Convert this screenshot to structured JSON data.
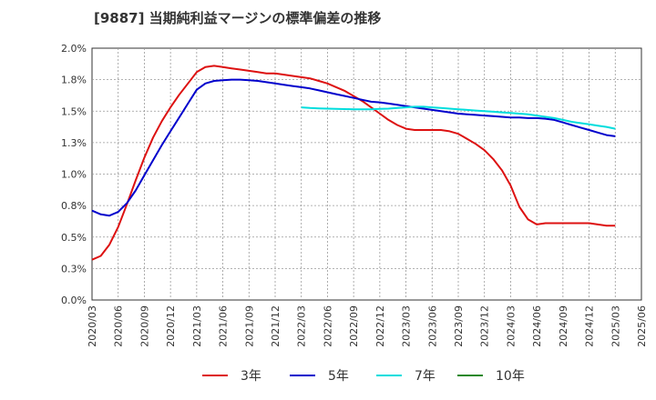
{
  "chart_data": {
    "type": "line",
    "title": "[9887]  当期純利益マージンの標準偏差の推移",
    "xlabel": "",
    "ylabel": "",
    "ylim": [
      0.0,
      2.0
    ],
    "grid": true,
    "legend_placement": "bottom",
    "y_ticks": [
      "0.0%",
      "0.3%",
      "0.5%",
      "0.8%",
      "1.0%",
      "1.3%",
      "1.5%",
      "1.8%",
      "2.0%"
    ],
    "x_ticks": [
      "2020/03",
      "2020/06",
      "2020/09",
      "2020/12",
      "2021/03",
      "2021/06",
      "2021/09",
      "2021/12",
      "2022/03",
      "2022/06",
      "2022/09",
      "2022/12",
      "2023/03",
      "2023/06",
      "2023/09",
      "2023/12",
      "2024/03",
      "2024/06",
      "2024/09",
      "2024/12",
      "2025/03",
      "2025/06"
    ],
    "series": [
      {
        "name": "3年",
        "color": "#dd1111",
        "x": [
          "2020/03",
          "2020/04",
          "2020/05",
          "2020/06",
          "2020/07",
          "2020/08",
          "2020/09",
          "2020/10",
          "2020/11",
          "2020/12",
          "2021/01",
          "2021/02",
          "2021/03",
          "2021/04",
          "2021/05",
          "2021/06",
          "2021/07",
          "2021/08",
          "2021/09",
          "2021/10",
          "2021/11",
          "2021/12",
          "2022/01",
          "2022/02",
          "2022/03",
          "2022/04",
          "2022/05",
          "2022/06",
          "2022/07",
          "2022/08",
          "2022/09",
          "2022/10",
          "2022/11",
          "2022/12",
          "2023/01",
          "2023/02",
          "2023/03",
          "2023/04",
          "2023/05",
          "2023/06",
          "2023/07",
          "2023/08",
          "2023/09",
          "2023/10",
          "2023/11",
          "2023/12",
          "2024/01",
          "2024/02",
          "2024/03",
          "2024/04",
          "2024/05",
          "2024/06",
          "2024/07",
          "2024/08",
          "2024/09",
          "2024/10",
          "2024/11",
          "2024/12",
          "2025/01",
          "2025/02",
          "2025/03"
        ],
        "values": [
          0.32,
          0.35,
          0.44,
          0.58,
          0.76,
          0.95,
          1.13,
          1.29,
          1.42,
          1.53,
          1.63,
          1.72,
          1.81,
          1.85,
          1.86,
          1.85,
          1.84,
          1.83,
          1.82,
          1.81,
          1.8,
          1.8,
          1.79,
          1.78,
          1.77,
          1.76,
          1.74,
          1.72,
          1.69,
          1.66,
          1.62,
          1.58,
          1.53,
          1.48,
          1.43,
          1.39,
          1.36,
          1.35,
          1.35,
          1.35,
          1.35,
          1.34,
          1.32,
          1.28,
          1.24,
          1.19,
          1.12,
          1.03,
          0.91,
          0.74,
          0.64,
          0.6,
          0.61,
          0.61,
          0.61,
          0.61,
          0.61,
          0.61,
          0.6,
          0.59,
          0.59
        ]
      },
      {
        "name": "5年",
        "color": "#0000cc",
        "x": [
          "2020/03",
          "2020/04",
          "2020/05",
          "2020/06",
          "2020/07",
          "2020/08",
          "2020/09",
          "2020/10",
          "2020/11",
          "2020/12",
          "2021/01",
          "2021/02",
          "2021/03",
          "2021/04",
          "2021/05",
          "2021/06",
          "2021/07",
          "2021/08",
          "2021/09",
          "2021/10",
          "2021/11",
          "2021/12",
          "2022/01",
          "2022/02",
          "2022/03",
          "2022/04",
          "2022/05",
          "2022/06",
          "2022/07",
          "2022/08",
          "2022/09",
          "2022/10",
          "2022/11",
          "2022/12",
          "2023/01",
          "2023/02",
          "2023/03",
          "2023/04",
          "2023/05",
          "2023/06",
          "2023/07",
          "2023/08",
          "2023/09",
          "2023/10",
          "2023/11",
          "2023/12",
          "2024/01",
          "2024/02",
          "2024/03",
          "2024/04",
          "2024/05",
          "2024/06",
          "2024/07",
          "2024/08",
          "2024/09",
          "2024/10",
          "2024/11",
          "2024/12",
          "2025/01",
          "2025/02",
          "2025/03"
        ],
        "values": [
          0.71,
          0.68,
          0.67,
          0.7,
          0.77,
          0.87,
          0.99,
          1.11,
          1.23,
          1.34,
          1.45,
          1.56,
          1.67,
          1.72,
          1.74,
          1.745,
          1.75,
          1.75,
          1.745,
          1.74,
          1.73,
          1.72,
          1.71,
          1.7,
          1.69,
          1.68,
          1.665,
          1.65,
          1.635,
          1.62,
          1.605,
          1.59,
          1.575,
          1.57,
          1.56,
          1.55,
          1.54,
          1.53,
          1.52,
          1.51,
          1.5,
          1.49,
          1.48,
          1.475,
          1.47,
          1.465,
          1.46,
          1.455,
          1.45,
          1.45,
          1.445,
          1.445,
          1.44,
          1.43,
          1.41,
          1.39,
          1.37,
          1.35,
          1.33,
          1.31,
          1.3
        ]
      },
      {
        "name": "7年",
        "color": "#00dddd",
        "x": [
          "2022/03",
          "2022/04",
          "2022/05",
          "2022/06",
          "2022/07",
          "2022/08",
          "2022/09",
          "2022/10",
          "2022/11",
          "2022/12",
          "2023/01",
          "2023/02",
          "2023/03",
          "2023/04",
          "2023/05",
          "2023/06",
          "2023/07",
          "2023/08",
          "2023/09",
          "2023/10",
          "2023/11",
          "2023/12",
          "2024/01",
          "2024/02",
          "2024/03",
          "2024/04",
          "2024/05",
          "2024/06",
          "2024/07",
          "2024/08",
          "2024/09",
          "2024/10",
          "2024/11",
          "2024/12",
          "2025/01",
          "2025/02",
          "2025/03"
        ],
        "values": [
          1.53,
          1.525,
          1.522,
          1.52,
          1.518,
          1.516,
          1.515,
          1.515,
          1.515,
          1.518,
          1.52,
          1.525,
          1.53,
          1.535,
          1.535,
          1.53,
          1.525,
          1.52,
          1.515,
          1.51,
          1.505,
          1.5,
          1.495,
          1.49,
          1.485,
          1.48,
          1.475,
          1.465,
          1.455,
          1.445,
          1.43,
          1.415,
          1.405,
          1.395,
          1.385,
          1.375,
          1.36
        ]
      },
      {
        "name": "10年",
        "color": "#228822",
        "x": [],
        "values": []
      }
    ]
  }
}
